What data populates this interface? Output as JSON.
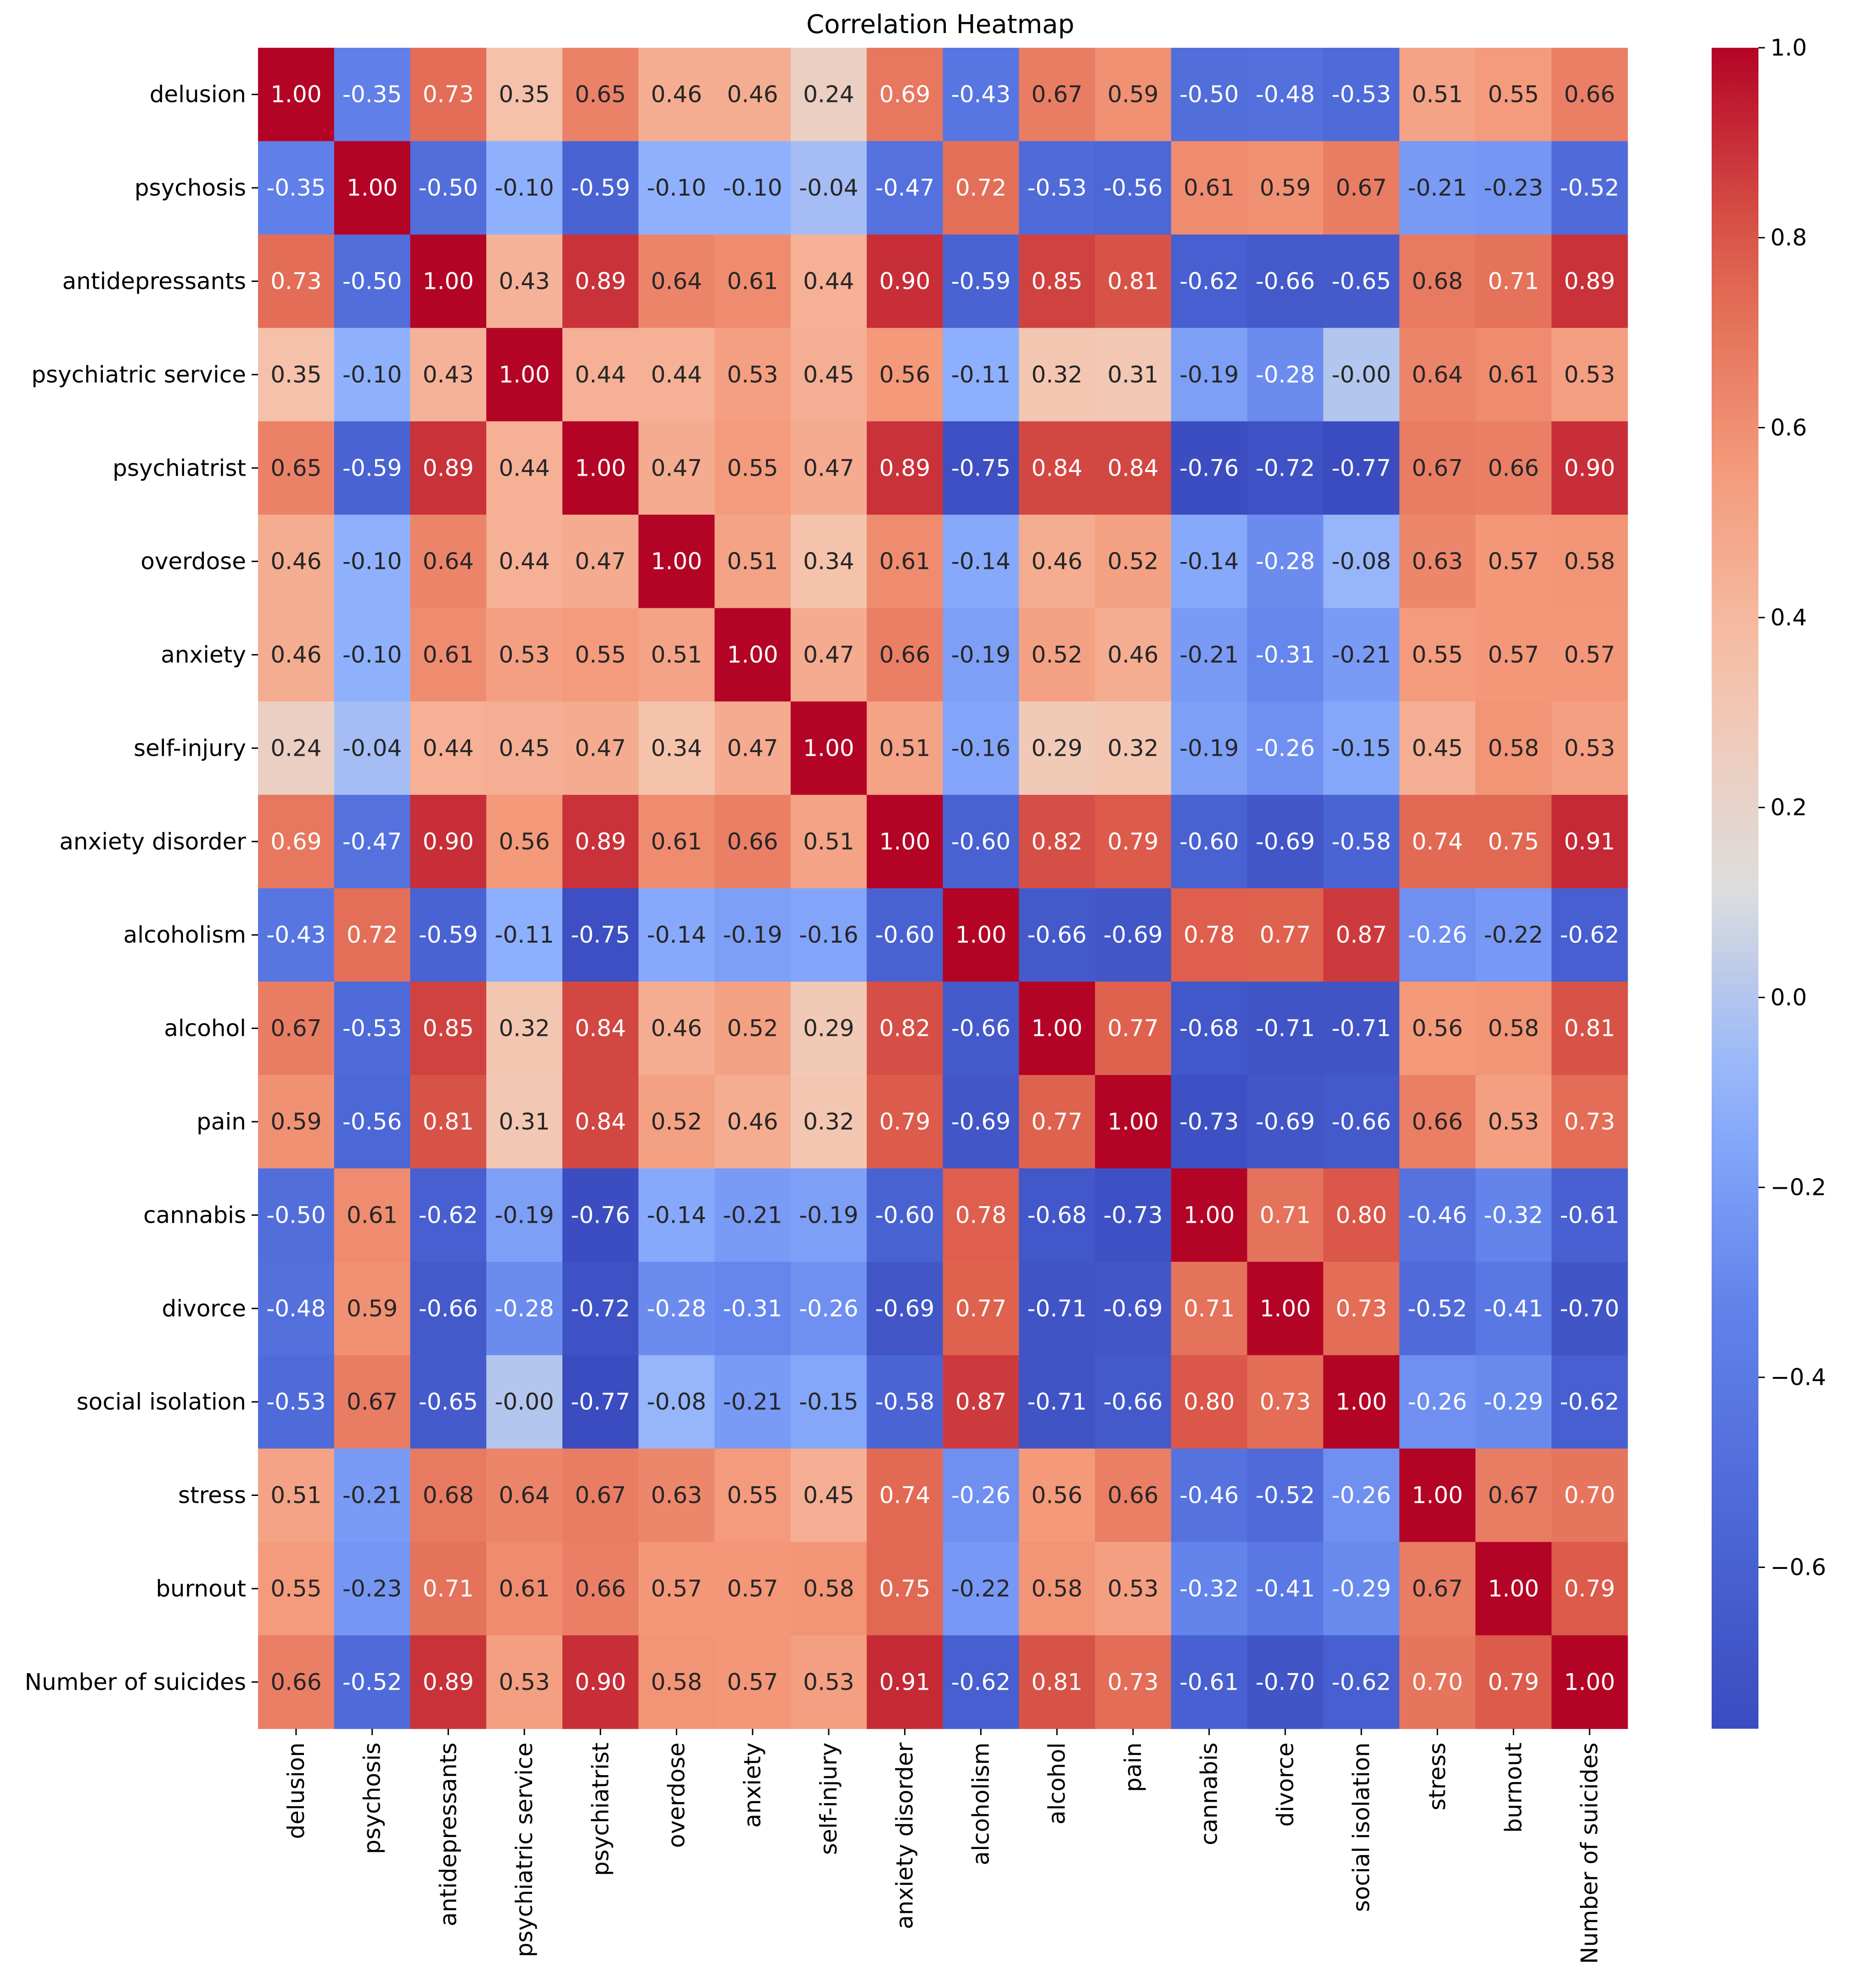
{
  "chart_data": {
    "type": "heatmap",
    "title": "Correlation Heatmap",
    "colormap": "coolwarm",
    "value_format": "0.00",
    "color_range": [
      -0.77,
      1.0
    ],
    "variables": [
      "delusion",
      "psychosis",
      "antidepressants",
      "psychiatric service",
      "psychiatrist",
      "overdose",
      "anxiety",
      "self-injury",
      "anxiety disorder",
      "alcoholism",
      "alcohol",
      "pain",
      "cannabis",
      "divorce",
      "social isolation",
      "stress",
      "burnout",
      "Number of suicides"
    ],
    "matrix": [
      [
        1.0,
        -0.35,
        0.73,
        0.35,
        0.65,
        0.46,
        0.46,
        0.24,
        0.69,
        -0.43,
        0.67,
        0.59,
        -0.5,
        -0.48,
        -0.53,
        0.51,
        0.55,
        0.66
      ],
      [
        -0.35,
        1.0,
        -0.5,
        -0.1,
        -0.59,
        -0.1,
        -0.1,
        -0.04,
        -0.47,
        0.72,
        -0.53,
        -0.56,
        0.61,
        0.59,
        0.67,
        -0.21,
        -0.23,
        -0.52
      ],
      [
        0.73,
        -0.5,
        1.0,
        0.43,
        0.89,
        0.64,
        0.61,
        0.44,
        0.9,
        -0.59,
        0.85,
        0.81,
        -0.62,
        -0.66,
        -0.65,
        0.68,
        0.71,
        0.89
      ],
      [
        0.35,
        -0.1,
        0.43,
        1.0,
        0.44,
        0.44,
        0.53,
        0.45,
        0.56,
        -0.11,
        0.32,
        0.31,
        -0.19,
        -0.28,
        -0.0,
        0.64,
        0.61,
        0.53
      ],
      [
        0.65,
        -0.59,
        0.89,
        0.44,
        1.0,
        0.47,
        0.55,
        0.47,
        0.89,
        -0.75,
        0.84,
        0.84,
        -0.76,
        -0.72,
        -0.77,
        0.67,
        0.66,
        0.9
      ],
      [
        0.46,
        -0.1,
        0.64,
        0.44,
        0.47,
        1.0,
        0.51,
        0.34,
        0.61,
        -0.14,
        0.46,
        0.52,
        -0.14,
        -0.28,
        -0.08,
        0.63,
        0.57,
        0.58
      ],
      [
        0.46,
        -0.1,
        0.61,
        0.53,
        0.55,
        0.51,
        1.0,
        0.47,
        0.66,
        -0.19,
        0.52,
        0.46,
        -0.21,
        -0.31,
        -0.21,
        0.55,
        0.57,
        0.57
      ],
      [
        0.24,
        -0.04,
        0.44,
        0.45,
        0.47,
        0.34,
        0.47,
        1.0,
        0.51,
        -0.16,
        0.29,
        0.32,
        -0.19,
        -0.26,
        -0.15,
        0.45,
        0.58,
        0.53
      ],
      [
        0.69,
        -0.47,
        0.9,
        0.56,
        0.89,
        0.61,
        0.66,
        0.51,
        1.0,
        -0.6,
        0.82,
        0.79,
        -0.6,
        -0.69,
        -0.58,
        0.74,
        0.75,
        0.91
      ],
      [
        -0.43,
        0.72,
        -0.59,
        -0.11,
        -0.75,
        -0.14,
        -0.19,
        -0.16,
        -0.6,
        1.0,
        -0.66,
        -0.69,
        0.78,
        0.77,
        0.87,
        -0.26,
        -0.22,
        -0.62
      ],
      [
        0.67,
        -0.53,
        0.85,
        0.32,
        0.84,
        0.46,
        0.52,
        0.29,
        0.82,
        -0.66,
        1.0,
        0.77,
        -0.68,
        -0.71,
        -0.71,
        0.56,
        0.58,
        0.81
      ],
      [
        0.59,
        -0.56,
        0.81,
        0.31,
        0.84,
        0.52,
        0.46,
        0.32,
        0.79,
        -0.69,
        0.77,
        1.0,
        -0.73,
        -0.69,
        -0.66,
        0.66,
        0.53,
        0.73
      ],
      [
        -0.5,
        0.61,
        -0.62,
        -0.19,
        -0.76,
        -0.14,
        -0.21,
        -0.19,
        -0.6,
        0.78,
        -0.68,
        -0.73,
        1.0,
        0.71,
        0.8,
        -0.46,
        -0.32,
        -0.61
      ],
      [
        -0.48,
        0.59,
        -0.66,
        -0.28,
        -0.72,
        -0.28,
        -0.31,
        -0.26,
        -0.69,
        0.77,
        -0.71,
        -0.69,
        0.71,
        1.0,
        0.73,
        -0.52,
        -0.41,
        -0.7
      ],
      [
        -0.53,
        0.67,
        -0.65,
        -0.0,
        -0.77,
        -0.08,
        -0.21,
        -0.15,
        -0.58,
        0.87,
        -0.71,
        -0.66,
        0.8,
        0.73,
        1.0,
        -0.26,
        -0.29,
        -0.62
      ],
      [
        0.51,
        -0.21,
        0.68,
        0.64,
        0.67,
        0.63,
        0.55,
        0.45,
        0.74,
        -0.26,
        0.56,
        0.66,
        -0.46,
        -0.52,
        -0.26,
        1.0,
        0.67,
        0.7
      ],
      [
        0.55,
        -0.23,
        0.71,
        0.61,
        0.66,
        0.57,
        0.57,
        0.58,
        0.75,
        -0.22,
        0.58,
        0.53,
        -0.32,
        -0.41,
        -0.29,
        0.67,
        1.0,
        0.79
      ],
      [
        0.66,
        -0.52,
        0.89,
        0.53,
        0.9,
        0.58,
        0.57,
        0.53,
        0.91,
        -0.62,
        0.81,
        0.73,
        -0.61,
        -0.7,
        -0.62,
        0.7,
        0.79,
        1.0
      ]
    ],
    "colorbar": {
      "ticks": [
        1.0,
        0.8,
        0.6,
        0.4,
        0.2,
        0.0,
        -0.2,
        -0.4,
        -0.6
      ],
      "tick_labels": [
        "1.0",
        "0.8",
        "0.6",
        "0.4",
        "0.2",
        "0.0",
        "−0.2",
        "−0.4",
        "−0.6"
      ]
    },
    "xlabel": "",
    "ylabel": ""
  }
}
